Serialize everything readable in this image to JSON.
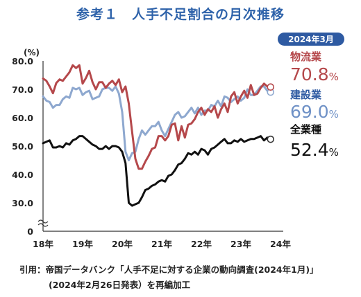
{
  "title": "参考１　人手不足割合の月次推移",
  "source_line1": "引用：帝国データバンク「人手不足に対する企業の動向調査(2024年1月)」",
  "source_line2": "(2024年2月26日発表）を再編加工",
  "chart_data": {
    "type": "line",
    "title": "参考１　人手不足割合の月次推移",
    "y_unit": "(%)",
    "ylim": [
      0,
      80
    ],
    "y_ticks": [
      "80.0",
      "70.0",
      "60.0",
      "50.0",
      "40.0",
      "30.0",
      "0"
    ],
    "x_ticks": [
      "18年",
      "19年",
      "20年",
      "21年",
      "22年",
      "23年",
      "24年"
    ],
    "badge": "2024年3月",
    "grid": false,
    "legend": "right-end labels",
    "series": [
      {
        "name": "物流業",
        "end_label": "70.8%",
        "color": "#b5484b",
        "values": [
          73.8,
          73.0,
          71.0,
          68.6,
          72.2,
          73.5,
          73.0,
          74.5,
          76.0,
          78.5,
          77.5,
          78.5,
          72.0,
          74.0,
          76.5,
          72.5,
          70.0,
          72.5,
          72.5,
          70.5,
          72.0,
          73.0,
          71.5,
          73.5,
          69.0,
          71.0,
          65.0,
          55.0,
          45.5,
          42.0,
          42.0,
          44.5,
          46.5,
          49.0,
          49.5,
          53.5,
          53.5,
          52.0,
          53.5,
          57.5,
          58.0,
          52.0,
          57.0,
          53.0,
          57.5,
          58.0,
          59.5,
          62.0,
          63.5,
          61.0,
          63.0,
          62.0,
          64.0,
          60.0,
          63.0,
          65.0,
          62.0,
          67.5,
          69.0,
          65.0,
          67.5,
          69.5,
          67.0,
          71.5,
          68.0,
          68.5,
          70.5,
          72.0,
          71.0,
          70.8
        ]
      },
      {
        "name": "建設業",
        "end_label": "69.0%",
        "color": "#8ea8cf",
        "values": [
          67.5,
          66.0,
          65.5,
          63.5,
          64.5,
          64.5,
          66.5,
          67.5,
          67.0,
          70.5,
          70.0,
          70.5,
          68.0,
          69.0,
          69.5,
          66.5,
          67.0,
          67.5,
          70.0,
          70.5,
          70.5,
          69.5,
          71.0,
          68.5,
          62.0,
          48.0,
          45.0,
          47.5,
          48.0,
          52.5,
          55.5,
          54.0,
          55.5,
          57.0,
          57.0,
          58.5,
          55.5,
          53.5,
          56.0,
          58.5,
          61.0,
          62.0,
          60.0,
          60.5,
          62.0,
          63.5,
          61.5,
          63.5,
          61.0,
          62.5,
          62.5,
          64.5,
          64.0,
          66.0,
          64.0,
          67.5,
          67.0,
          65.5,
          66.5,
          67.5,
          66.0,
          67.0,
          70.0,
          68.0,
          68.0,
          69.5,
          71.0,
          71.0,
          69.5,
          69.0
        ]
      },
      {
        "name": "全業種",
        "end_label": "52.4%",
        "color": "#111111",
        "values": [
          51.0,
          51.5,
          52.0,
          49.5,
          49.5,
          50.0,
          49.5,
          51.0,
          50.5,
          52.0,
          52.5,
          53.5,
          53.5,
          52.5,
          51.5,
          50.5,
          50.0,
          49.0,
          49.0,
          50.0,
          49.0,
          50.0,
          50.0,
          49.5,
          48.0,
          44.0,
          30.0,
          29.0,
          29.5,
          30.0,
          32.0,
          34.5,
          35.0,
          36.0,
          36.5,
          37.5,
          38.0,
          37.5,
          39.5,
          40.0,
          41.5,
          43.5,
          44.0,
          45.5,
          47.5,
          47.0,
          48.0,
          47.0,
          49.0,
          48.5,
          47.0,
          49.0,
          49.5,
          50.5,
          51.5,
          52.5,
          51.0,
          51.0,
          52.0,
          51.5,
          52.5,
          51.5,
          52.0,
          52.5,
          52.5,
          53.0,
          53.5,
          52.0,
          53.0,
          52.4
        ]
      }
    ]
  }
}
